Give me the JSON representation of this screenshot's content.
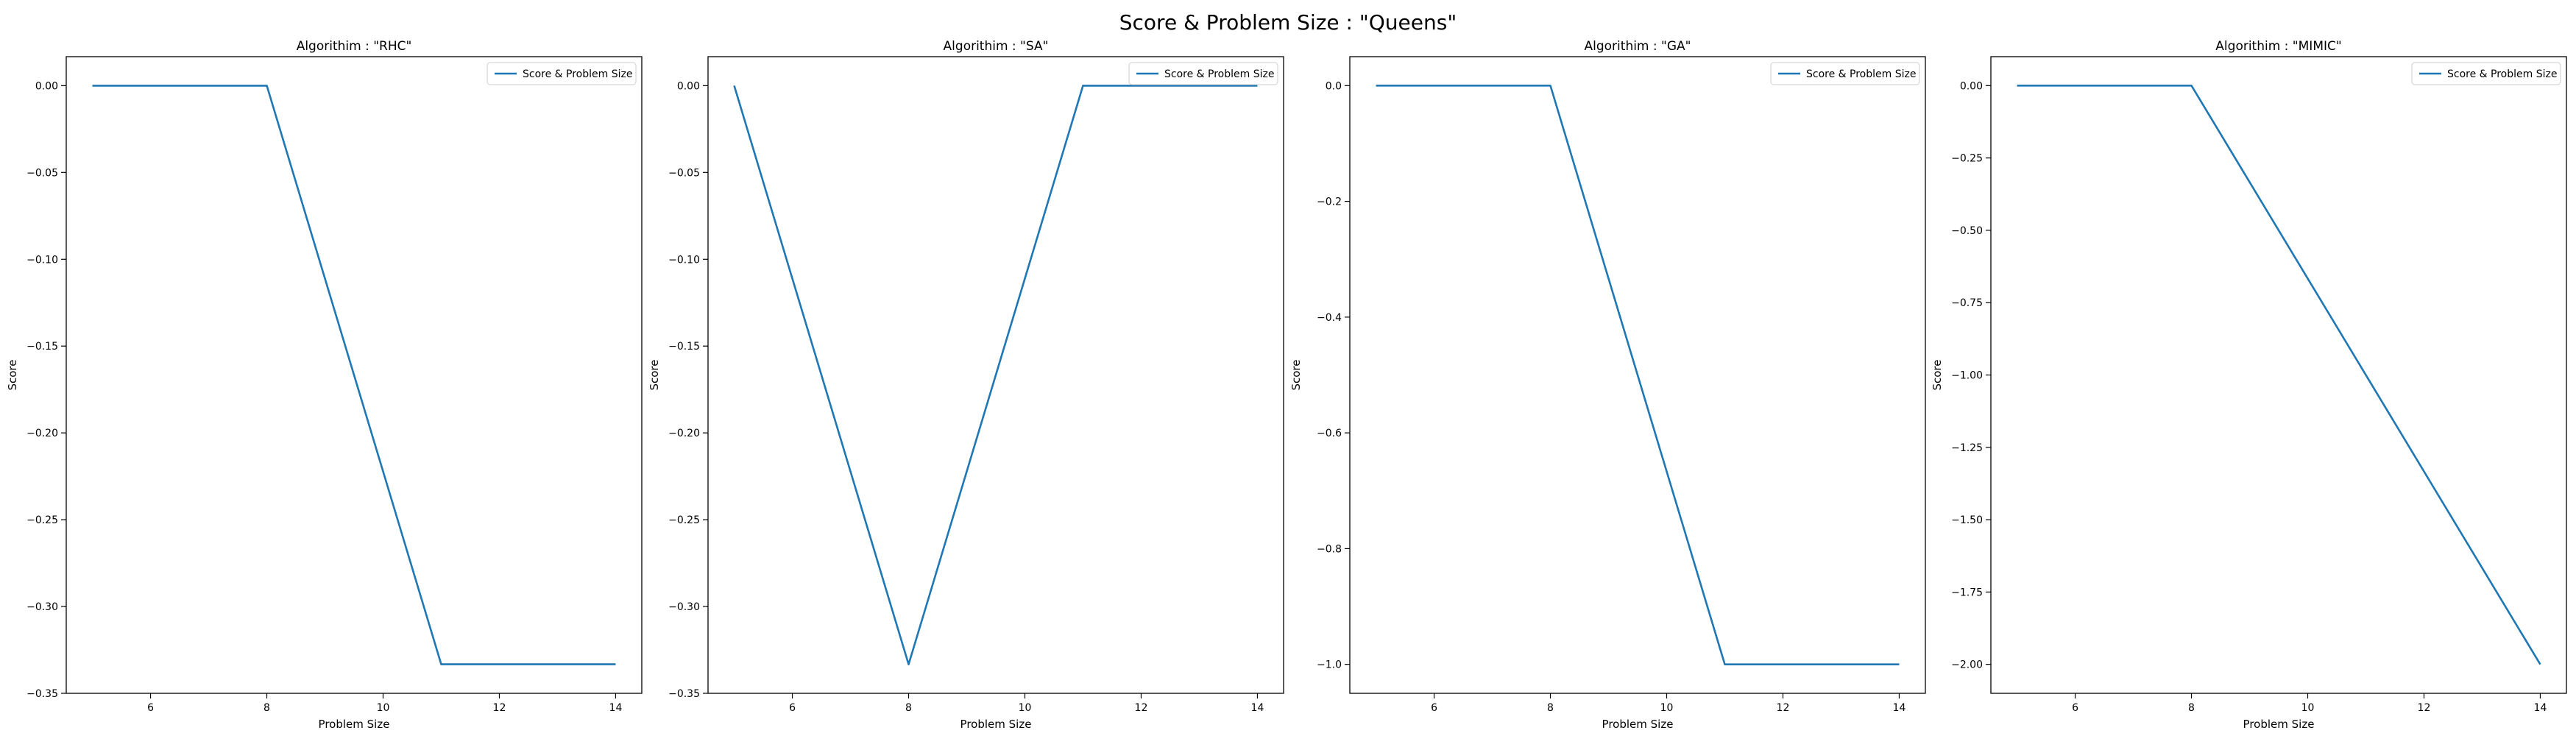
{
  "figure": {
    "suptitle": "Score & Problem Size : \"Queens\""
  },
  "chart_data": [
    {
      "type": "line",
      "title": "Algorithim : \"RHC\"",
      "xlabel": "Problem Size",
      "ylabel": "Score",
      "legend": "top-right",
      "grid": false,
      "xlim": [
        4.55,
        14.45
      ],
      "ylim": [
        -0.35,
        0.0167
      ],
      "xticks": [
        6,
        8,
        10,
        12,
        14
      ],
      "yticks": [
        0.0,
        -0.05,
        -0.1,
        -0.15,
        -0.2,
        -0.25,
        -0.3,
        -0.35
      ],
      "ytick_labels": [
        "0.00",
        "−0.05",
        "−0.10",
        "−0.15",
        "−0.20",
        "−0.25",
        "−0.30",
        "−0.35"
      ],
      "xtick_labels": [
        "6",
        "8",
        "10",
        "12",
        "14"
      ],
      "series": [
        {
          "name": "Score & Problem Size",
          "color": "#1f77b4",
          "x": [
            5,
            8,
            11,
            14
          ],
          "y": [
            0.0,
            0.0,
            -0.3333,
            -0.3333
          ]
        }
      ]
    },
    {
      "type": "line",
      "title": "Algorithim : \"SA\"",
      "xlabel": "Problem Size",
      "ylabel": "Score",
      "legend": "top-right",
      "grid": false,
      "xlim": [
        4.55,
        14.45
      ],
      "ylim": [
        -0.35,
        0.0167
      ],
      "xticks": [
        6,
        8,
        10,
        12,
        14
      ],
      "yticks": [
        0.0,
        -0.05,
        -0.1,
        -0.15,
        -0.2,
        -0.25,
        -0.3,
        -0.35
      ],
      "ytick_labels": [
        "0.00",
        "−0.05",
        "−0.10",
        "−0.15",
        "−0.20",
        "−0.25",
        "−0.30",
        "−0.35"
      ],
      "xtick_labels": [
        "6",
        "8",
        "10",
        "12",
        "14"
      ],
      "series": [
        {
          "name": "Score & Problem Size",
          "color": "#1f77b4",
          "x": [
            5,
            8,
            11,
            14
          ],
          "y": [
            0.0,
            -0.3333,
            0.0,
            0.0
          ]
        }
      ]
    },
    {
      "type": "line",
      "title": "Algorithim : \"GA\"",
      "xlabel": "Problem Size",
      "ylabel": "Score",
      "legend": "top-right",
      "grid": false,
      "xlim": [
        4.55,
        14.45
      ],
      "ylim": [
        -1.05,
        0.05
      ],
      "xticks": [
        6,
        8,
        10,
        12,
        14
      ],
      "yticks": [
        0.0,
        -0.2,
        -0.4,
        -0.6,
        -0.8,
        -1.0
      ],
      "ytick_labels": [
        "0.0",
        "−0.2",
        "−0.4",
        "−0.6",
        "−0.8",
        "−1.0"
      ],
      "xtick_labels": [
        "6",
        "8",
        "10",
        "12",
        "14"
      ],
      "series": [
        {
          "name": "Score & Problem Size",
          "color": "#1f77b4",
          "x": [
            5,
            8,
            11,
            14
          ],
          "y": [
            0.0,
            0.0,
            -1.0,
            -1.0
          ]
        }
      ]
    },
    {
      "type": "line",
      "title": "Algorithim : \"MIMIC\"",
      "xlabel": "Problem Size",
      "ylabel": "Score",
      "legend": "top-right",
      "grid": false,
      "xlim": [
        4.55,
        14.45
      ],
      "ylim": [
        -2.1,
        0.1
      ],
      "xticks": [
        6,
        8,
        10,
        12,
        14
      ],
      "yticks": [
        0.0,
        -0.25,
        -0.5,
        -0.75,
        -1.0,
        -1.25,
        -1.5,
        -1.75,
        -2.0
      ],
      "ytick_labels": [
        "0.00",
        "−0.25",
        "−0.50",
        "−0.75",
        "−1.00",
        "−1.25",
        "−1.50",
        "−1.75",
        "−2.00"
      ],
      "xtick_labels": [
        "6",
        "8",
        "10",
        "12",
        "14"
      ],
      "series": [
        {
          "name": "Score & Problem Size",
          "color": "#1f77b4",
          "x": [
            5,
            8,
            14
          ],
          "y": [
            0.0,
            0.0,
            -2.0
          ]
        }
      ]
    }
  ]
}
